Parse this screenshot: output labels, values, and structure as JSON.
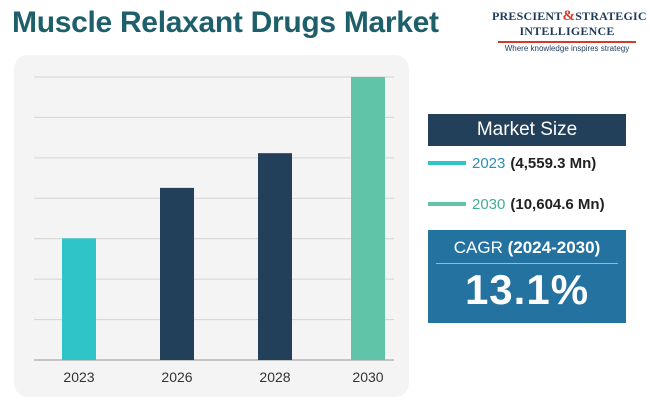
{
  "header": {
    "title": "Muscle Relaxant Drugs Market"
  },
  "logo": {
    "line1_left": "PRESCIENT",
    "ampersand": "&",
    "line1_right": "STRATEGIC",
    "line2": "INTELLIGENCE",
    "tagline": "Where knowledge inspires strategy"
  },
  "market_size": {
    "label": "Market Size",
    "entries": [
      {
        "year": "2023",
        "value": "(4,559.3 Mn)",
        "color": "#2ec4c8"
      },
      {
        "year": "2030",
        "value": "(10,604.6 Mn)",
        "color": "#5fc4a8"
      }
    ]
  },
  "cagr": {
    "label": "CAGR",
    "period": "(2024-2030)",
    "value": "13.1%"
  },
  "colors": {
    "title": "#1d5f6b",
    "bar_2023": "#2ec4c8",
    "bar_mid": "#22405a",
    "bar_2030": "#5fc4a8",
    "market_header_bg": "#22405a",
    "cagr_bg": "#2472a0",
    "chart_bg": "#f3f4f3",
    "gridline": "#d4d4d4"
  },
  "chart_data": {
    "type": "bar",
    "categories": [
      "2023",
      "2026",
      "2028",
      "2030"
    ],
    "values": [
      4559.3,
      6450,
      7750,
      10604.6
    ],
    "bar_colors": [
      "#2ec4c8",
      "#22405a",
      "#22405a",
      "#5fc4a8"
    ],
    "title": "",
    "xlabel": "",
    "ylabel": "",
    "ylim": [
      0,
      10604.6
    ],
    "grid": true,
    "gridlines": 7
  }
}
